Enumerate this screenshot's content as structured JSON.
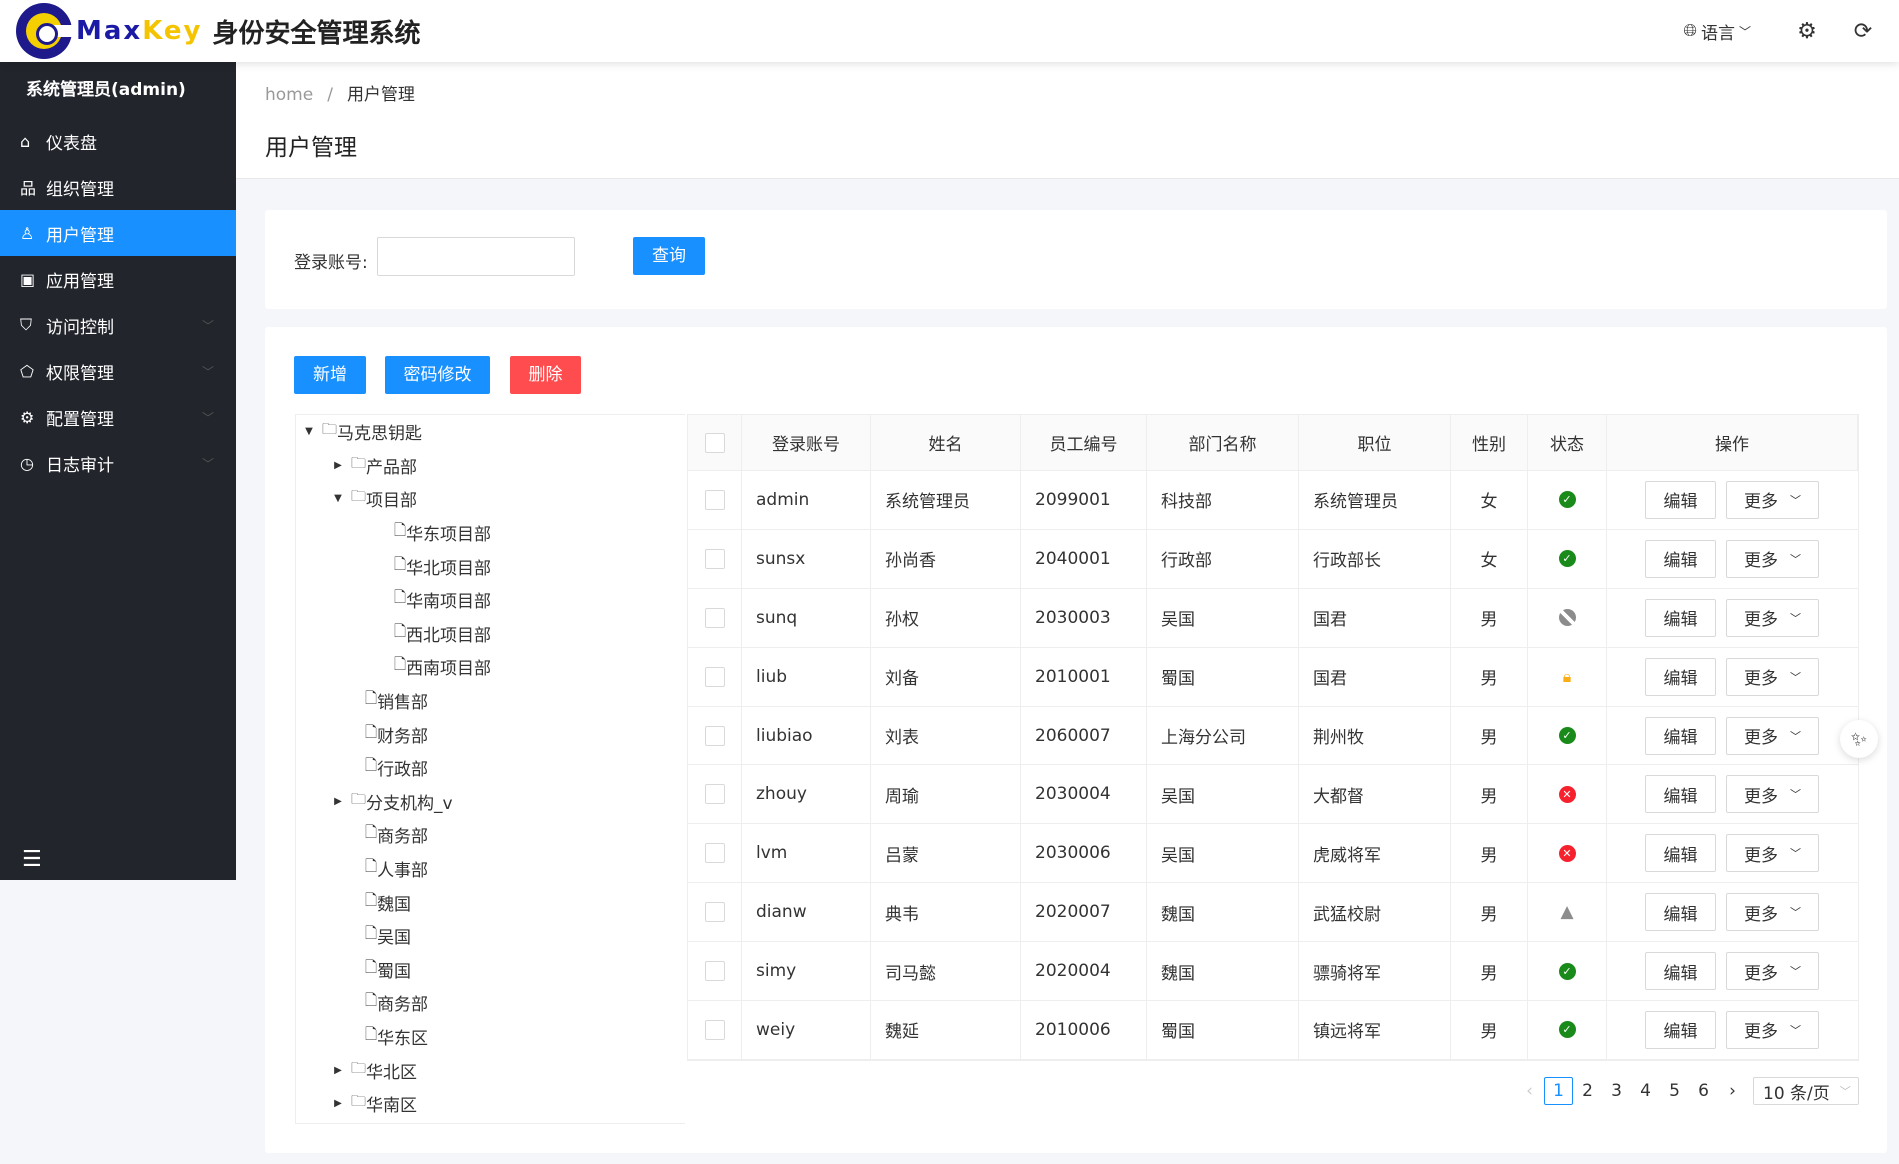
{
  "header": {
    "logo_max": "Max",
    "logo_key": "Key",
    "system_title": "身份安全管理系统",
    "language_label": "语言",
    "icons": [
      "globe-icon",
      "setting-icon",
      "logout-icon"
    ]
  },
  "sidebar": {
    "user": "系统管理员(admin)",
    "items": [
      {
        "label": "仪表盘",
        "icon": "home-icon",
        "glyph": "⌂"
      },
      {
        "label": "组织管理",
        "icon": "org-icon",
        "glyph": "品"
      },
      {
        "label": "用户管理",
        "icon": "user-icon",
        "glyph": "♙",
        "active": true
      },
      {
        "label": "应用管理",
        "icon": "app-icon",
        "glyph": "▣"
      },
      {
        "label": "访问控制",
        "icon": "shield-icon",
        "glyph": "⛉",
        "submenu": true
      },
      {
        "label": "权限管理",
        "icon": "permission-icon",
        "glyph": "⬠",
        "submenu": true
      },
      {
        "label": "配置管理",
        "icon": "gear-icon",
        "glyph": "⚙",
        "submenu": true
      },
      {
        "label": "日志审计",
        "icon": "clock-icon",
        "glyph": "◷",
        "submenu": true
      }
    ]
  },
  "breadcrumb": {
    "home": "home",
    "sep": "/",
    "current": "用户管理"
  },
  "page_title": "用户管理",
  "search": {
    "label": "登录账号:",
    "value": "",
    "placeholder": "",
    "button": "查询"
  },
  "toolbar": {
    "add": "新增",
    "password": "密码修改",
    "delete": "删除"
  },
  "tree": [
    {
      "label": "马克思钥匙",
      "level": 0,
      "type": "folder",
      "expanded": true
    },
    {
      "label": "产品部",
      "level": 1,
      "type": "folder",
      "expanded": false
    },
    {
      "label": "项目部",
      "level": 1,
      "type": "folder",
      "expanded": true
    },
    {
      "label": "华东项目部",
      "level": 2,
      "type": "file"
    },
    {
      "label": "华北项目部",
      "level": 2,
      "type": "file"
    },
    {
      "label": "华南项目部",
      "level": 2,
      "type": "file"
    },
    {
      "label": "西北项目部",
      "level": 2,
      "type": "file"
    },
    {
      "label": "西南项目部",
      "level": 2,
      "type": "file"
    },
    {
      "label": "销售部",
      "level": 1,
      "type": "file"
    },
    {
      "label": "财务部",
      "level": 1,
      "type": "file"
    },
    {
      "label": "行政部",
      "level": 1,
      "type": "file"
    },
    {
      "label": "分支机构_v",
      "level": 1,
      "type": "folder",
      "expanded": false
    },
    {
      "label": "商务部",
      "level": 1,
      "type": "file"
    },
    {
      "label": "人事部",
      "level": 1,
      "type": "file"
    },
    {
      "label": "魏国",
      "level": 1,
      "type": "file"
    },
    {
      "label": "吴国",
      "level": 1,
      "type": "file"
    },
    {
      "label": "蜀国",
      "level": 1,
      "type": "file"
    },
    {
      "label": "商务部",
      "level": 1,
      "type": "file"
    },
    {
      "label": "华东区",
      "level": 1,
      "type": "file"
    },
    {
      "label": "华北区",
      "level": 1,
      "type": "folder",
      "expanded": false
    },
    {
      "label": "华南区",
      "level": 1,
      "type": "folder",
      "expanded": false
    }
  ],
  "table": {
    "columns": [
      "登录账号",
      "姓名",
      "员工编号",
      "部门名称",
      "职位",
      "性别",
      "状态",
      "操作"
    ],
    "edit_label": "编辑",
    "more_label": "更多",
    "rows": [
      {
        "username": "admin",
        "name": "系统管理员",
        "empno": "2099001",
        "dept": "科技部",
        "title": "系统管理员",
        "gender": "女",
        "status": "active"
      },
      {
        "username": "sunsx",
        "name": "孙尚香",
        "empno": "2040001",
        "dept": "行政部",
        "title": "行政部长",
        "gender": "女",
        "status": "active"
      },
      {
        "username": "sunq",
        "name": "孙权",
        "empno": "2030003",
        "dept": "吴国",
        "title": "国君",
        "gender": "男",
        "status": "disabled"
      },
      {
        "username": "liub",
        "name": "刘备",
        "empno": "2010001",
        "dept": "蜀国",
        "title": "国君",
        "gender": "男",
        "status": "locked"
      },
      {
        "username": "liubiao",
        "name": "刘表",
        "empno": "2060007",
        "dept": "上海分公司",
        "title": "荆州牧",
        "gender": "男",
        "status": "active"
      },
      {
        "username": "zhouy",
        "name": "周瑜",
        "empno": "2030004",
        "dept": "吴国",
        "title": "大都督",
        "gender": "男",
        "status": "error"
      },
      {
        "username": "lvm",
        "name": "吕蒙",
        "empno": "2030006",
        "dept": "吴国",
        "title": "虎威将军",
        "gender": "男",
        "status": "error"
      },
      {
        "username": "dianw",
        "name": "典韦",
        "empno": "2020007",
        "dept": "魏国",
        "title": "武猛校尉",
        "gender": "男",
        "status": "warning"
      },
      {
        "username": "simy",
        "name": "司马懿",
        "empno": "2020004",
        "dept": "魏国",
        "title": "骠骑将军",
        "gender": "男",
        "status": "active"
      },
      {
        "username": "weiy",
        "name": "魏延",
        "empno": "2010006",
        "dept": "蜀国",
        "title": "镇远将军",
        "gender": "男",
        "status": "active"
      }
    ]
  },
  "pagination": {
    "pages": [
      "1",
      "2",
      "3",
      "4",
      "5",
      "6"
    ],
    "current": "1",
    "page_size": "10 条/页"
  },
  "colors": {
    "primary": "#1890ff",
    "danger": "#ff4d4f",
    "sidebar": "#22252c",
    "ok": "#1a8a1a",
    "error": "#f5222d",
    "locked": "#faad14",
    "disabled": "#8c8c8c"
  }
}
